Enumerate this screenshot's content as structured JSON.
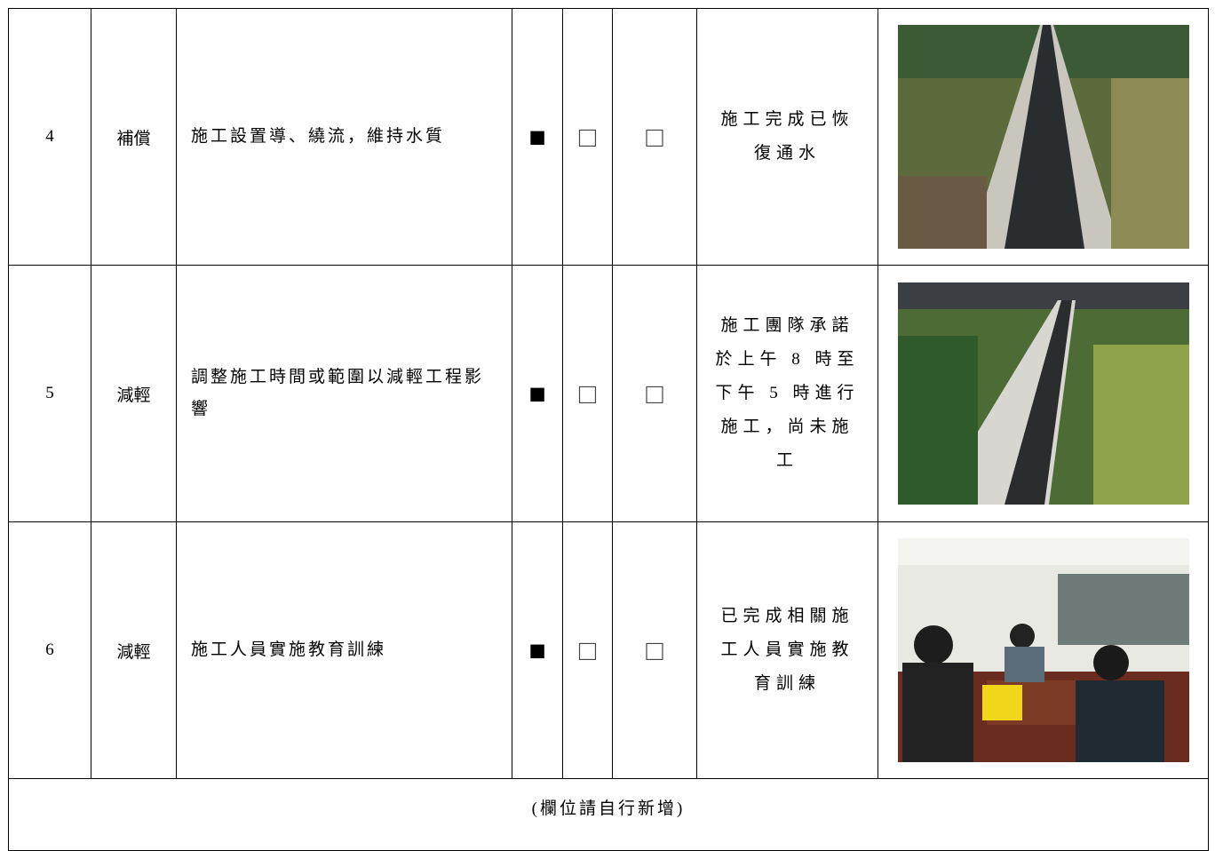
{
  "table": {
    "rows": [
      {
        "no": "4",
        "type": "補償",
        "measure": "施工設置導、繞流，維持水質",
        "checks": [
          "■",
          "□",
          "□"
        ],
        "status": "施工完成已恢復通水"
      },
      {
        "no": "5",
        "type": "減輕",
        "measure": "調整施工時間或範圍以減輕工程影響",
        "checks": [
          "■",
          "□",
          "□"
        ],
        "status": "施工團隊承諾於上午 8 時至下午 5 時進行施工，尚未施工"
      },
      {
        "no": "6",
        "type": "減輕",
        "measure": "施工人員實施教育訓練",
        "checks": [
          "■",
          "□",
          "□"
        ],
        "status": "已完成相關施工人員實施教育訓練"
      }
    ],
    "footer": "(欄位請自行新增)"
  }
}
